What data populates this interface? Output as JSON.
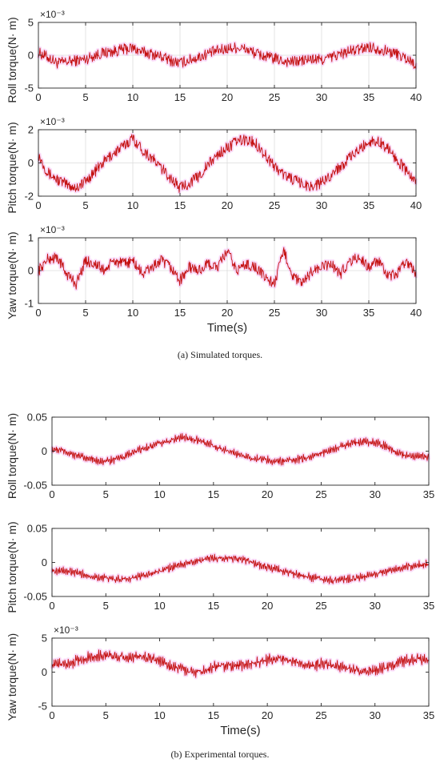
{
  "colors": {
    "line": "#c41010",
    "band": "#ee82ee",
    "axis": "#262626",
    "grid": "#dcdcdc",
    "text": "#262626"
  },
  "captions": {
    "a": "(a)  Simulated torques.",
    "b": "(b)  Experimental torques."
  },
  "chart_data": [
    {
      "type": "line",
      "group": "a",
      "ylabel": "Roll torque(N· m)",
      "xlabel": "",
      "exponent_label": "×10⁻³",
      "xlim": [
        0,
        40
      ],
      "ylim": [
        -5,
        5
      ],
      "xticks": [
        0,
        5,
        10,
        15,
        20,
        25,
        30,
        35,
        40
      ],
      "yticks": [
        -5,
        0,
        5
      ],
      "xgrid": true,
      "series": [
        {
          "x": [
            0,
            1,
            2,
            3,
            4,
            5,
            6,
            7,
            8,
            9,
            10,
            11,
            12,
            13,
            14,
            15,
            16,
            17,
            18,
            19,
            20,
            21,
            22,
            23,
            24,
            25,
            26,
            27,
            28,
            29,
            30,
            31,
            32,
            33,
            34,
            35,
            36,
            37,
            38,
            39,
            40
          ],
          "y": [
            0.4,
            -0.3,
            -1.2,
            -1.0,
            -0.8,
            -0.6,
            0.0,
            0.4,
            0.6,
            0.9,
            1.1,
            0.5,
            0.2,
            -0.2,
            -0.8,
            -1.2,
            -0.7,
            -0.3,
            0.3,
            0.7,
            1.0,
            1.2,
            0.9,
            0.3,
            -0.2,
            -0.5,
            -0.9,
            -1.0,
            -0.8,
            -0.6,
            -0.7,
            -0.3,
            0.2,
            0.6,
            0.9,
            1.3,
            1.0,
            0.6,
            0.2,
            -0.5,
            -1.4
          ]
        }
      ]
    },
    {
      "type": "line",
      "group": "a",
      "ylabel": "Pitch torque(N· m)",
      "xlabel": "",
      "exponent_label": "×10⁻³",
      "xlim": [
        0,
        40
      ],
      "ylim": [
        -2,
        2
      ],
      "xticks": [
        0,
        5,
        10,
        15,
        20,
        25,
        30,
        35,
        40
      ],
      "yticks": [
        -2,
        0,
        2
      ],
      "xgrid": true,
      "series": [
        {
          "x": [
            0,
            1,
            2,
            3,
            4,
            5,
            6,
            7,
            8,
            9,
            10,
            11,
            12,
            13,
            14,
            15,
            16,
            17,
            18,
            19,
            20,
            21,
            22,
            23,
            24,
            25,
            26,
            27,
            28,
            29,
            30,
            31,
            32,
            33,
            34,
            35,
            36,
            37,
            38,
            39,
            40
          ],
          "y": [
            0.5,
            -0.6,
            -1.0,
            -1.3,
            -1.5,
            -1.1,
            -0.5,
            0.1,
            0.6,
            1.0,
            1.5,
            0.8,
            0.3,
            -0.3,
            -0.9,
            -1.5,
            -1.2,
            -0.8,
            -0.1,
            0.5,
            0.9,
            1.3,
            1.4,
            1.2,
            0.5,
            -0.2,
            -0.7,
            -1.0,
            -1.3,
            -1.4,
            -1.2,
            -0.7,
            -0.2,
            0.3,
            0.8,
            1.3,
            1.3,
            0.9,
            0.2,
            -0.5,
            -1.2
          ]
        }
      ]
    },
    {
      "type": "line",
      "group": "a",
      "ylabel": "Yaw torque(N· m)",
      "xlabel": "Time(s)",
      "exponent_label": "×10⁻³",
      "xlim": [
        0,
        40
      ],
      "ylim": [
        -1,
        1
      ],
      "xticks": [
        0,
        5,
        10,
        15,
        20,
        25,
        30,
        35,
        40
      ],
      "yticks": [
        -1,
        0,
        1
      ],
      "xgrid": true,
      "series": [
        {
          "x": [
            0,
            1,
            2,
            3,
            4,
            5,
            6,
            7,
            8,
            9,
            10,
            11,
            12,
            13,
            14,
            15,
            16,
            17,
            18,
            19,
            20,
            21,
            22,
            23,
            24,
            25,
            26,
            27,
            28,
            29,
            30,
            31,
            32,
            33,
            34,
            35,
            36,
            37,
            38,
            39,
            40
          ],
          "y": [
            0.0,
            0.35,
            0.4,
            -0.1,
            -0.4,
            0.3,
            0.2,
            0.0,
            0.3,
            0.2,
            0.3,
            -0.1,
            0.1,
            0.3,
            0.1,
            -0.3,
            0.1,
            0.0,
            0.2,
            0.1,
            0.6,
            0.0,
            0.2,
            0.1,
            -0.2,
            -0.4,
            0.6,
            -0.2,
            -0.4,
            0.0,
            0.1,
            0.2,
            -0.1,
            0.3,
            0.4,
            0.1,
            0.3,
            -0.2,
            -0.1,
            0.3,
            -0.1
          ]
        }
      ]
    },
    {
      "type": "line",
      "group": "b",
      "ylabel": "Roll torque(N· m)",
      "xlabel": "",
      "exponent_label": "",
      "xlim": [
        0,
        35
      ],
      "ylim": [
        -0.05,
        0.05
      ],
      "xticks": [
        0,
        5,
        10,
        15,
        20,
        25,
        30,
        35
      ],
      "yticks": [
        -0.05,
        0,
        0.05
      ],
      "xgrid": false,
      "series": [
        {
          "x": [
            0,
            1,
            2,
            3,
            4,
            5,
            6,
            7,
            8,
            9,
            10,
            11,
            12,
            13,
            14,
            15,
            16,
            17,
            18,
            19,
            20,
            21,
            22,
            23,
            24,
            25,
            26,
            27,
            28,
            29,
            30,
            31,
            32,
            33,
            34,
            35
          ],
          "y": [
            0.002,
            0.001,
            -0.005,
            -0.01,
            -0.013,
            -0.015,
            -0.012,
            -0.006,
            0.001,
            0.006,
            0.011,
            0.016,
            0.02,
            0.018,
            0.015,
            0.008,
            0.002,
            -0.003,
            -0.008,
            -0.011,
            -0.013,
            -0.015,
            -0.014,
            -0.012,
            -0.008,
            -0.003,
            0.002,
            0.009,
            0.012,
            0.014,
            0.013,
            0.007,
            -0.002,
            -0.006,
            -0.008,
            -0.009
          ]
        }
      ]
    },
    {
      "type": "line",
      "group": "b",
      "ylabel": "Pitch torque(N· m)",
      "xlabel": "",
      "exponent_label": "",
      "xlim": [
        0,
        35
      ],
      "ylim": [
        -0.05,
        0.05
      ],
      "xticks": [
        0,
        5,
        10,
        15,
        20,
        25,
        30,
        35
      ],
      "yticks": [
        -0.05,
        0,
        0.05
      ],
      "xgrid": false,
      "series": [
        {
          "x": [
            0,
            1,
            2,
            3,
            4,
            5,
            6,
            7,
            8,
            9,
            10,
            11,
            12,
            13,
            14,
            15,
            16,
            17,
            18,
            19,
            20,
            21,
            22,
            23,
            24,
            25,
            26,
            27,
            28,
            29,
            30,
            31,
            32,
            33,
            34,
            35
          ],
          "y": [
            -0.012,
            -0.012,
            -0.015,
            -0.018,
            -0.021,
            -0.023,
            -0.025,
            -0.024,
            -0.021,
            -0.017,
            -0.013,
            -0.008,
            -0.003,
            0.0,
            0.004,
            0.006,
            0.007,
            0.005,
            0.003,
            -0.002,
            -0.007,
            -0.011,
            -0.015,
            -0.019,
            -0.022,
            -0.024,
            -0.026,
            -0.025,
            -0.024,
            -0.021,
            -0.017,
            -0.013,
            -0.009,
            -0.006,
            -0.004,
            -0.002
          ]
        }
      ]
    },
    {
      "type": "line",
      "group": "b",
      "ylabel": "Yaw torque(N· m)",
      "xlabel": "Time(s)",
      "exponent_label": "×10⁻³",
      "xlim": [
        0,
        35
      ],
      "ylim": [
        -5,
        5
      ],
      "xticks": [
        0,
        5,
        10,
        15,
        20,
        25,
        30,
        35
      ],
      "yticks": [
        -5,
        0,
        5
      ],
      "xgrid": false,
      "series": [
        {
          "x": [
            0,
            1,
            2,
            3,
            4,
            5,
            6,
            7,
            8,
            9,
            10,
            11,
            12,
            13,
            14,
            15,
            16,
            17,
            18,
            19,
            20,
            21,
            22,
            23,
            24,
            25,
            26,
            27,
            28,
            29,
            30,
            31,
            32,
            33,
            34,
            35
          ],
          "y": [
            1.0,
            1.2,
            1.5,
            2.0,
            2.3,
            2.5,
            2.4,
            2.1,
            2.3,
            2.2,
            1.7,
            0.9,
            0.6,
            0.0,
            0.2,
            0.8,
            1.0,
            0.9,
            1.1,
            1.4,
            1.8,
            2.0,
            1.7,
            1.3,
            1.0,
            1.2,
            1.0,
            0.6,
            0.4,
            0.2,
            0.3,
            0.6,
            1.3,
            1.7,
            1.9,
            1.6
          ]
        }
      ]
    }
  ]
}
